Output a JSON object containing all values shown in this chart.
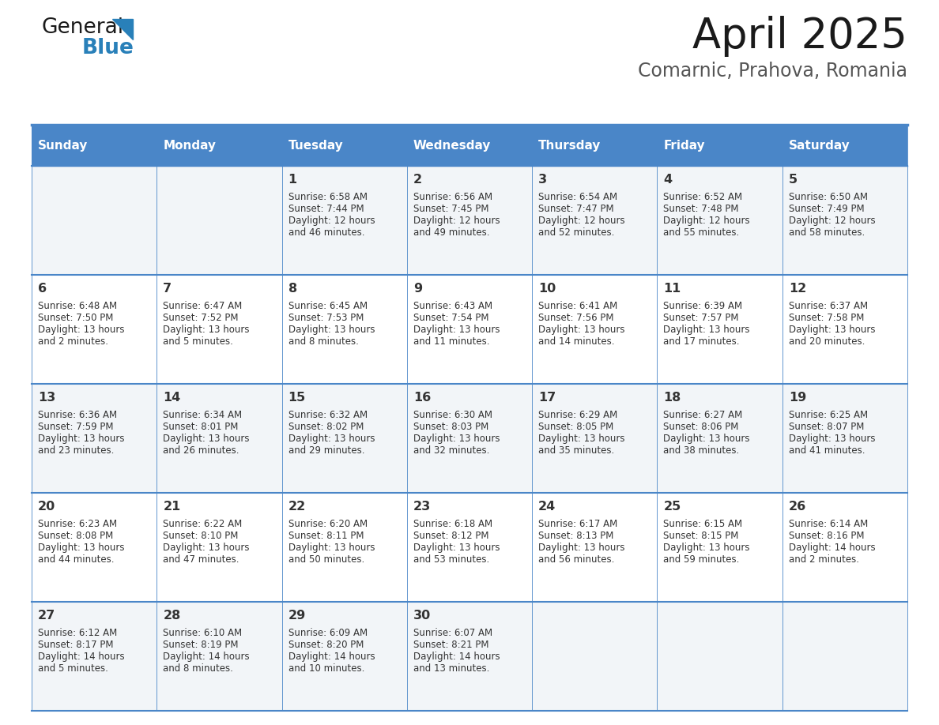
{
  "title": "April 2025",
  "subtitle": "Comarnic, Prahova, Romania",
  "header_bg_color": "#4a86c8",
  "header_text_color": "#ffffff",
  "row_bg_even": "#f2f5f8",
  "row_bg_odd": "#ffffff",
  "border_color": "#4a86c8",
  "text_color": "#333333",
  "days_of_week": [
    "Sunday",
    "Monday",
    "Tuesday",
    "Wednesday",
    "Thursday",
    "Friday",
    "Saturday"
  ],
  "weeks": [
    [
      {
        "day": null,
        "sunrise": null,
        "sunset": null,
        "daylight_line1": null,
        "daylight_line2": null
      },
      {
        "day": null,
        "sunrise": null,
        "sunset": null,
        "daylight_line1": null,
        "daylight_line2": null
      },
      {
        "day": "1",
        "sunrise": "Sunrise: 6:58 AM",
        "sunset": "Sunset: 7:44 PM",
        "daylight_line1": "Daylight: 12 hours",
        "daylight_line2": "and 46 minutes."
      },
      {
        "day": "2",
        "sunrise": "Sunrise: 6:56 AM",
        "sunset": "Sunset: 7:45 PM",
        "daylight_line1": "Daylight: 12 hours",
        "daylight_line2": "and 49 minutes."
      },
      {
        "day": "3",
        "sunrise": "Sunrise: 6:54 AM",
        "sunset": "Sunset: 7:47 PM",
        "daylight_line1": "Daylight: 12 hours",
        "daylight_line2": "and 52 minutes."
      },
      {
        "day": "4",
        "sunrise": "Sunrise: 6:52 AM",
        "sunset": "Sunset: 7:48 PM",
        "daylight_line1": "Daylight: 12 hours",
        "daylight_line2": "and 55 minutes."
      },
      {
        "day": "5",
        "sunrise": "Sunrise: 6:50 AM",
        "sunset": "Sunset: 7:49 PM",
        "daylight_line1": "Daylight: 12 hours",
        "daylight_line2": "and 58 minutes."
      }
    ],
    [
      {
        "day": "6",
        "sunrise": "Sunrise: 6:48 AM",
        "sunset": "Sunset: 7:50 PM",
        "daylight_line1": "Daylight: 13 hours",
        "daylight_line2": "and 2 minutes."
      },
      {
        "day": "7",
        "sunrise": "Sunrise: 6:47 AM",
        "sunset": "Sunset: 7:52 PM",
        "daylight_line1": "Daylight: 13 hours",
        "daylight_line2": "and 5 minutes."
      },
      {
        "day": "8",
        "sunrise": "Sunrise: 6:45 AM",
        "sunset": "Sunset: 7:53 PM",
        "daylight_line1": "Daylight: 13 hours",
        "daylight_line2": "and 8 minutes."
      },
      {
        "day": "9",
        "sunrise": "Sunrise: 6:43 AM",
        "sunset": "Sunset: 7:54 PM",
        "daylight_line1": "Daylight: 13 hours",
        "daylight_line2": "and 11 minutes."
      },
      {
        "day": "10",
        "sunrise": "Sunrise: 6:41 AM",
        "sunset": "Sunset: 7:56 PM",
        "daylight_line1": "Daylight: 13 hours",
        "daylight_line2": "and 14 minutes."
      },
      {
        "day": "11",
        "sunrise": "Sunrise: 6:39 AM",
        "sunset": "Sunset: 7:57 PM",
        "daylight_line1": "Daylight: 13 hours",
        "daylight_line2": "and 17 minutes."
      },
      {
        "day": "12",
        "sunrise": "Sunrise: 6:37 AM",
        "sunset": "Sunset: 7:58 PM",
        "daylight_line1": "Daylight: 13 hours",
        "daylight_line2": "and 20 minutes."
      }
    ],
    [
      {
        "day": "13",
        "sunrise": "Sunrise: 6:36 AM",
        "sunset": "Sunset: 7:59 PM",
        "daylight_line1": "Daylight: 13 hours",
        "daylight_line2": "and 23 minutes."
      },
      {
        "day": "14",
        "sunrise": "Sunrise: 6:34 AM",
        "sunset": "Sunset: 8:01 PM",
        "daylight_line1": "Daylight: 13 hours",
        "daylight_line2": "and 26 minutes."
      },
      {
        "day": "15",
        "sunrise": "Sunrise: 6:32 AM",
        "sunset": "Sunset: 8:02 PM",
        "daylight_line1": "Daylight: 13 hours",
        "daylight_line2": "and 29 minutes."
      },
      {
        "day": "16",
        "sunrise": "Sunrise: 6:30 AM",
        "sunset": "Sunset: 8:03 PM",
        "daylight_line1": "Daylight: 13 hours",
        "daylight_line2": "and 32 minutes."
      },
      {
        "day": "17",
        "sunrise": "Sunrise: 6:29 AM",
        "sunset": "Sunset: 8:05 PM",
        "daylight_line1": "Daylight: 13 hours",
        "daylight_line2": "and 35 minutes."
      },
      {
        "day": "18",
        "sunrise": "Sunrise: 6:27 AM",
        "sunset": "Sunset: 8:06 PM",
        "daylight_line1": "Daylight: 13 hours",
        "daylight_line2": "and 38 minutes."
      },
      {
        "day": "19",
        "sunrise": "Sunrise: 6:25 AM",
        "sunset": "Sunset: 8:07 PM",
        "daylight_line1": "Daylight: 13 hours",
        "daylight_line2": "and 41 minutes."
      }
    ],
    [
      {
        "day": "20",
        "sunrise": "Sunrise: 6:23 AM",
        "sunset": "Sunset: 8:08 PM",
        "daylight_line1": "Daylight: 13 hours",
        "daylight_line2": "and 44 minutes."
      },
      {
        "day": "21",
        "sunrise": "Sunrise: 6:22 AM",
        "sunset": "Sunset: 8:10 PM",
        "daylight_line1": "Daylight: 13 hours",
        "daylight_line2": "and 47 minutes."
      },
      {
        "day": "22",
        "sunrise": "Sunrise: 6:20 AM",
        "sunset": "Sunset: 8:11 PM",
        "daylight_line1": "Daylight: 13 hours",
        "daylight_line2": "and 50 minutes."
      },
      {
        "day": "23",
        "sunrise": "Sunrise: 6:18 AM",
        "sunset": "Sunset: 8:12 PM",
        "daylight_line1": "Daylight: 13 hours",
        "daylight_line2": "and 53 minutes."
      },
      {
        "day": "24",
        "sunrise": "Sunrise: 6:17 AM",
        "sunset": "Sunset: 8:13 PM",
        "daylight_line1": "Daylight: 13 hours",
        "daylight_line2": "and 56 minutes."
      },
      {
        "day": "25",
        "sunrise": "Sunrise: 6:15 AM",
        "sunset": "Sunset: 8:15 PM",
        "daylight_line1": "Daylight: 13 hours",
        "daylight_line2": "and 59 minutes."
      },
      {
        "day": "26",
        "sunrise": "Sunrise: 6:14 AM",
        "sunset": "Sunset: 8:16 PM",
        "daylight_line1": "Daylight: 14 hours",
        "daylight_line2": "and 2 minutes."
      }
    ],
    [
      {
        "day": "27",
        "sunrise": "Sunrise: 6:12 AM",
        "sunset": "Sunset: 8:17 PM",
        "daylight_line1": "Daylight: 14 hours",
        "daylight_line2": "and 5 minutes."
      },
      {
        "day": "28",
        "sunrise": "Sunrise: 6:10 AM",
        "sunset": "Sunset: 8:19 PM",
        "daylight_line1": "Daylight: 14 hours",
        "daylight_line2": "and 8 minutes."
      },
      {
        "day": "29",
        "sunrise": "Sunrise: 6:09 AM",
        "sunset": "Sunset: 8:20 PM",
        "daylight_line1": "Daylight: 14 hours",
        "daylight_line2": "and 10 minutes."
      },
      {
        "day": "30",
        "sunrise": "Sunrise: 6:07 AM",
        "sunset": "Sunset: 8:21 PM",
        "daylight_line1": "Daylight: 14 hours",
        "daylight_line2": "and 13 minutes."
      },
      {
        "day": null,
        "sunrise": null,
        "sunset": null,
        "daylight_line1": null,
        "daylight_line2": null
      },
      {
        "day": null,
        "sunrise": null,
        "sunset": null,
        "daylight_line1": null,
        "daylight_line2": null
      },
      {
        "day": null,
        "sunrise": null,
        "sunset": null,
        "daylight_line1": null,
        "daylight_line2": null
      }
    ]
  ]
}
